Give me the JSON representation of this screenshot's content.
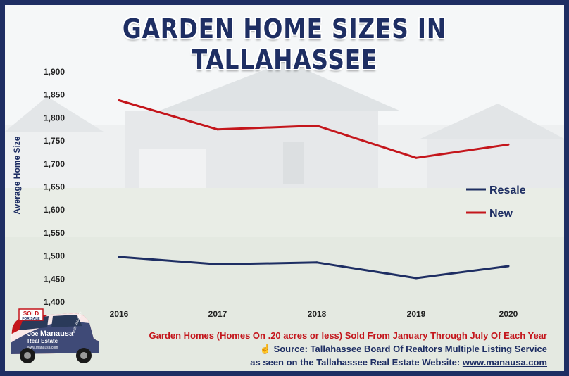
{
  "title": "Garden Home Sizes In Tallahassee",
  "colors": {
    "resale": "#1e2e63",
    "new": "#c4161c",
    "frame": "#1e2e63"
  },
  "chart_data": {
    "type": "line",
    "title": "Garden Home Sizes In Tallahassee",
    "xlabel": "",
    "ylabel": "Average Home Size",
    "categories": [
      "2016",
      "2017",
      "2018",
      "2019",
      "2020"
    ],
    "y_ticks": [
      "1,400",
      "1,450",
      "1,500",
      "1,550",
      "1,600",
      "1,650",
      "1,700",
      "1,750",
      "1,800",
      "1,850",
      "1,900"
    ],
    "ylim": [
      1400,
      1900
    ],
    "grid": false,
    "legend_position": "right",
    "series": [
      {
        "name": "Resale",
        "values": [
          1498,
          1482,
          1486,
          1452,
          1478
        ]
      },
      {
        "name": "New",
        "values": [
          1838,
          1775,
          1783,
          1713,
          1742
        ]
      }
    ]
  },
  "caption": {
    "line1": "Garden Homes (Homes On .20 acres or less) Sold From January Through July Of Each Year",
    "line2_icon": "pointing-hand-icon",
    "line2": "Source: Tallahassee Board Of Realtors Multiple Listing Service",
    "line3_prefix": "as seen on the Tallahassee Real Estate Website:",
    "line3_url": "www.manausa.com"
  },
  "car": {
    "sign": "SOLD",
    "sign_small": "FOR SALE",
    "brand1": "Joe",
    "brand2": "Manausa",
    "brand3": "Real Estate",
    "website": "www.manausa.com",
    "phone": "(850) 366-8917"
  }
}
